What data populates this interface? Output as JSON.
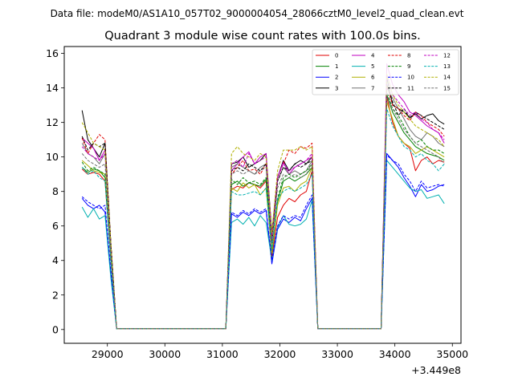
{
  "suptitle": "Data file: modeM0/AS1A10_057T02_9000004054_28066cztM0_level2_quad_clean.evt",
  "chart_data": {
    "type": "line",
    "title": "Quadrant 3 module wise count rates with 100.0s bins.",
    "xlabel": "",
    "ylabel": "",
    "x_offset_label": "+3.449e8",
    "xlim": [
      28250,
      35150
    ],
    "ylim": [
      -0.8,
      16.4
    ],
    "xticks": [
      29000,
      30000,
      31000,
      32000,
      33000,
      34000,
      35000
    ],
    "xtick_labels": [
      "29000",
      "30000",
      "31000",
      "32000",
      "33000",
      "34000",
      "35000"
    ],
    "yticks": [
      0,
      2,
      4,
      6,
      8,
      10,
      12,
      14,
      16
    ],
    "ytick_labels": [
      "0",
      "2",
      "4",
      "6",
      "8",
      "10",
      "12",
      "14",
      "16"
    ],
    "legend_location": "upper-right",
    "legend_columns": 4,
    "x": [
      28560,
      28660,
      28760,
      28860,
      28960,
      29060,
      29160,
      31060,
      31160,
      31260,
      31360,
      31460,
      31560,
      31660,
      31760,
      31860,
      31960,
      32060,
      32160,
      32260,
      32360,
      32460,
      32560,
      32660,
      33760,
      33860,
      33960,
      34060,
      34160,
      34260,
      34360,
      34460,
      34560,
      34660,
      34760,
      34860
    ],
    "series": [
      {
        "name": "0",
        "color": "#e00000",
        "style": "solid",
        "values": [
          9.3,
          9.0,
          9.1,
          9.0,
          8.6,
          4.0,
          0.05,
          0.05,
          8.1,
          8.3,
          8.2,
          8.5,
          8.4,
          8.2,
          8.6,
          4.2,
          6.5,
          7.2,
          7.6,
          7.4,
          7.8,
          8.0,
          9.2,
          0.05,
          0.05,
          13.5,
          12.0,
          11.2,
          10.8,
          10.5,
          9.2,
          9.8,
          10.0,
          9.6,
          9.8,
          9.7
        ]
      },
      {
        "name": "1",
        "color": "#008000",
        "style": "solid",
        "values": [
          9.4,
          9.1,
          9.3,
          9.2,
          8.8,
          4.1,
          0.05,
          0.05,
          8.4,
          8.6,
          8.3,
          8.5,
          8.4,
          8.3,
          8.7,
          4.5,
          7.4,
          8.6,
          8.8,
          8.6,
          8.8,
          9.0,
          9.4,
          0.05,
          0.05,
          13.6,
          12.6,
          12.0,
          11.4,
          11.0,
          10.6,
          10.4,
          10.2,
          10.1,
          10.0,
          9.8
        ]
      },
      {
        "name": "2",
        "color": "#0000ff",
        "style": "solid",
        "values": [
          7.6,
          7.2,
          7.0,
          7.2,
          6.8,
          3.2,
          0.05,
          0.05,
          6.7,
          6.5,
          6.8,
          6.6,
          6.9,
          6.7,
          6.9,
          3.8,
          5.8,
          6.4,
          6.2,
          6.5,
          6.3,
          7.0,
          7.6,
          0.05,
          0.05,
          10.2,
          9.8,
          9.4,
          8.8,
          8.3,
          7.7,
          8.4,
          8.0,
          8.1,
          8.3,
          8.4
        ]
      },
      {
        "name": "3",
        "color": "#000000",
        "style": "solid",
        "values": [
          12.7,
          11.0,
          10.5,
          10.0,
          10.8,
          5.0,
          0.05,
          0.05,
          9.6,
          9.7,
          10.0,
          9.4,
          9.6,
          9.8,
          10.2,
          5.6,
          8.8,
          9.8,
          9.2,
          9.6,
          9.8,
          9.6,
          10.0,
          0.05,
          0.05,
          14.6,
          13.0,
          12.8,
          12.6,
          12.3,
          12.5,
          12.2,
          12.4,
          12.5,
          12.1,
          11.9
        ]
      },
      {
        "name": "4",
        "color": "#c000c0",
        "style": "solid",
        "values": [
          11.1,
          10.8,
          10.5,
          9.8,
          10.4,
          4.8,
          0.05,
          0.05,
          9.2,
          9.6,
          10.0,
          10.3,
          9.6,
          10.0,
          10.2,
          5.3,
          8.8,
          9.7,
          9.0,
          9.4,
          9.6,
          9.8,
          10.0,
          0.05,
          0.05,
          15.4,
          14.2,
          13.6,
          13.2,
          12.6,
          12.4,
          12.1,
          11.8,
          11.6,
          11.4,
          10.8
        ]
      },
      {
        "name": "5",
        "color": "#00b0b0",
        "style": "solid",
        "values": [
          7.1,
          6.5,
          7.0,
          6.4,
          6.6,
          3.0,
          0.05,
          0.05,
          6.2,
          6.4,
          6.1,
          6.5,
          6.0,
          6.6,
          6.2,
          4.0,
          5.9,
          6.6,
          6.1,
          6.0,
          6.1,
          6.4,
          7.5,
          0.05,
          0.05,
          9.8,
          9.4,
          9.0,
          8.6,
          8.2,
          8.0,
          8.1,
          7.6,
          7.7,
          7.8,
          7.3
        ]
      },
      {
        "name": "6",
        "color": "#b0b000",
        "style": "solid",
        "values": [
          9.8,
          9.5,
          9.2,
          9.1,
          9.0,
          4.2,
          0.05,
          0.05,
          8.2,
          8.0,
          8.5,
          8.2,
          8.4,
          7.8,
          8.2,
          4.4,
          7.2,
          8.2,
          8.3,
          8.0,
          8.4,
          8.6,
          9.4,
          0.05,
          0.05,
          13.2,
          12.2,
          11.2,
          10.8,
          10.6,
          10.2,
          10.4,
          10.6,
          10.4,
          10.2,
          10.0
        ]
      },
      {
        "name": "7",
        "color": "#707070",
        "style": "solid",
        "values": [
          10.8,
          10.2,
          10.0,
          9.6,
          10.2,
          4.6,
          0.05,
          0.05,
          9.4,
          9.6,
          9.4,
          9.2,
          9.0,
          9.4,
          9.6,
          5.2,
          8.6,
          9.4,
          9.0,
          9.2,
          9.0,
          9.2,
          9.8,
          0.05,
          0.05,
          14.0,
          13.4,
          12.8,
          12.2,
          11.6,
          11.2,
          11.0,
          11.4,
          11.2,
          10.8,
          10.6
        ]
      },
      {
        "name": "8",
        "color": "#e00000",
        "style": "dashed",
        "values": [
          11.1,
          10.2,
          10.8,
          11.3,
          11.0,
          5.0,
          0.05,
          0.05,
          9.0,
          9.4,
          9.8,
          9.2,
          9.3,
          9.0,
          9.6,
          5.4,
          8.8,
          9.6,
          10.4,
          10.2,
          10.6,
          10.5,
          10.8,
          0.05,
          0.05,
          14.2,
          13.0,
          12.8,
          12.4,
          12.1,
          12.6,
          12.4,
          12.0,
          11.8,
          11.6,
          11.2
        ]
      },
      {
        "name": "9",
        "color": "#008000",
        "style": "dashed",
        "values": [
          9.7,
          9.2,
          9.4,
          9.2,
          9.0,
          4.3,
          0.05,
          0.05,
          8.7,
          8.4,
          8.8,
          8.5,
          8.6,
          8.4,
          8.8,
          4.6,
          7.6,
          8.8,
          9.0,
          8.8,
          9.0,
          9.2,
          9.6,
          0.05,
          0.05,
          13.8,
          12.8,
          12.4,
          11.8,
          11.2,
          10.8,
          11.0,
          10.6,
          10.4,
          10.4,
          10.2
        ]
      },
      {
        "name": "10",
        "color": "#0000ff",
        "style": "dashed",
        "values": [
          7.7,
          7.4,
          7.2,
          7.0,
          7.2,
          3.4,
          0.05,
          0.05,
          6.8,
          6.6,
          6.9,
          6.7,
          7.0,
          6.8,
          7.0,
          4.0,
          6.0,
          6.6,
          6.4,
          6.6,
          6.5,
          7.2,
          7.8,
          0.05,
          0.05,
          10.1,
          9.8,
          9.6,
          9.0,
          8.6,
          8.0,
          8.6,
          8.2,
          8.3,
          8.4,
          8.3
        ]
      },
      {
        "name": "11",
        "color": "#000000",
        "style": "dashed",
        "values": [
          11.2,
          10.4,
          10.8,
          10.6,
          10.8,
          5.0,
          0.05,
          0.05,
          9.2,
          9.4,
          9.2,
          9.6,
          9.4,
          9.2,
          9.6,
          5.0,
          8.6,
          9.4,
          9.2,
          9.6,
          9.4,
          9.6,
          9.8,
          0.05,
          0.05,
          14.2,
          13.2,
          12.4,
          12.8,
          12.2,
          12.6,
          12.4,
          12.2,
          12.0,
          11.8,
          11.6
        ]
      },
      {
        "name": "12",
        "color": "#c000c0",
        "style": "dashed",
        "values": [
          10.6,
          10.2,
          10.0,
          9.8,
          10.2,
          4.8,
          0.05,
          0.05,
          9.6,
          9.8,
          9.4,
          10.2,
          9.6,
          9.8,
          10.0,
          5.2,
          8.8,
          9.6,
          9.2,
          9.4,
          9.6,
          9.8,
          10.2,
          0.05,
          0.05,
          14.8,
          13.6,
          13.2,
          12.8,
          12.4,
          12.6,
          12.2,
          12.0,
          11.6,
          11.4,
          11.0
        ]
      },
      {
        "name": "13",
        "color": "#00b0b0",
        "style": "dashed",
        "values": [
          9.4,
          9.0,
          9.2,
          8.8,
          8.6,
          4.0,
          0.05,
          0.05,
          8.0,
          7.8,
          7.8,
          7.9,
          8.0,
          7.8,
          8.2,
          4.6,
          7.6,
          8.0,
          8.2,
          8.0,
          8.2,
          8.4,
          9.0,
          0.05,
          0.05,
          12.8,
          11.8,
          11.2,
          10.6,
          10.4,
          10.0,
          10.2,
          9.8,
          9.6,
          9.2,
          9.6
        ]
      },
      {
        "name": "14",
        "color": "#b0b000",
        "style": "dashed",
        "values": [
          12.0,
          11.4,
          10.8,
          10.6,
          10.4,
          5.0,
          0.05,
          0.05,
          10.2,
          10.6,
          10.2,
          10.0,
          9.8,
          10.2,
          10.0,
          5.6,
          9.2,
          10.4,
          10.4,
          10.4,
          10.6,
          10.4,
          10.6,
          0.05,
          0.05,
          14.8,
          13.6,
          13.0,
          12.6,
          12.2,
          11.8,
          11.6,
          11.4,
          11.2,
          11.0,
          10.6
        ]
      },
      {
        "name": "15",
        "color": "#707070",
        "style": "dashed",
        "values": [
          10.2,
          9.8,
          9.6,
          9.4,
          9.6,
          4.4,
          0.05,
          0.05,
          9.0,
          9.2,
          9.0,
          9.2,
          9.0,
          9.2,
          9.4,
          5.0,
          8.2,
          9.0,
          8.8,
          9.0,
          8.8,
          9.0,
          9.6,
          0.05,
          0.05,
          13.6,
          12.8,
          12.2,
          11.6,
          11.2,
          10.8,
          10.6,
          10.4,
          10.2,
          10.0,
          9.6
        ]
      }
    ]
  }
}
